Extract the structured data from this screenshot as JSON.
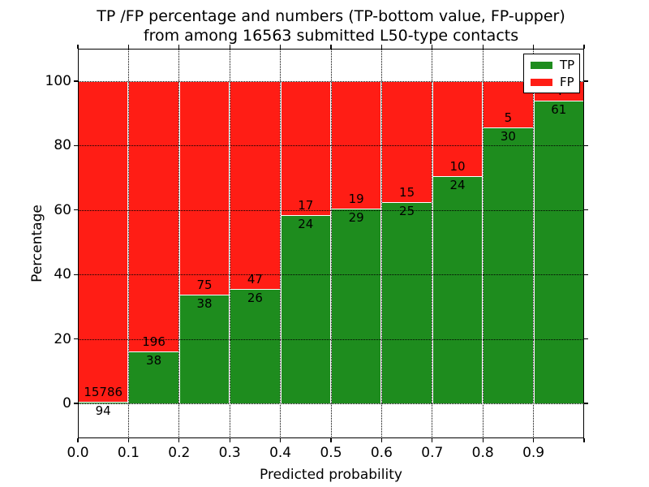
{
  "title": {
    "line1": "TP /FP percentage and numbers (TP-bottom value, FP-upper)",
    "line2": "from among 16563 submitted L50-type contacts"
  },
  "axes": {
    "x_label": "Predicted probability",
    "y_label": "Percentage",
    "x_ticks": [
      "0.0",
      "0.1",
      "0.2",
      "0.3",
      "0.4",
      "0.5",
      "0.6",
      "0.7",
      "0.8",
      "0.9"
    ],
    "y_ticks": [
      "0",
      "20",
      "40",
      "60",
      "80",
      "100"
    ],
    "y_tick_values": [
      0,
      20,
      40,
      60,
      80,
      100
    ]
  },
  "legend": {
    "items": [
      {
        "label": "TP",
        "color": "#1e8c1e"
      },
      {
        "label": "FP",
        "color": "#ff1d15"
      }
    ]
  },
  "colors": {
    "tp_green": "#1e8c1e",
    "fp_red": "#ff1d15",
    "axis_black": "#000000",
    "background": "#ffffff"
  },
  "chart_data": {
    "type": "bar",
    "stacked": true,
    "title": "TP /FP percentage and numbers (TP-bottom value, FP-upper) from among 16563 submitted L50-type contacts",
    "xlabel": "Predicted probability",
    "ylabel": "Percentage",
    "bin_edges": [
      0.0,
      0.1,
      0.2,
      0.3,
      0.4,
      0.5,
      0.6,
      0.7,
      0.8,
      0.9,
      1.0
    ],
    "categories": [
      "0.0-0.1",
      "0.1-0.2",
      "0.2-0.3",
      "0.3-0.4",
      "0.4-0.5",
      "0.5-0.6",
      "0.6-0.7",
      "0.7-0.8",
      "0.8-0.9",
      "0.9-1.0"
    ],
    "series": [
      {
        "name": "TP",
        "color": "#1e8c1e",
        "counts": [
          94,
          38,
          38,
          26,
          24,
          29,
          25,
          24,
          30,
          61
        ]
      },
      {
        "name": "FP",
        "color": "#ff1d15",
        "counts": [
          15786,
          196,
          75,
          47,
          17,
          19,
          15,
          10,
          5,
          4
        ]
      }
    ],
    "tp_percent": [
      0.59,
      16.24,
      33.63,
      35.62,
      58.54,
      60.42,
      62.5,
      70.59,
      85.71,
      93.85
    ],
    "total_contacts": 16563,
    "xlim": [
      0.0,
      1.0
    ],
    "ylim_visual": [
      -11,
      110
    ],
    "grid": "dotted both axes at major ticks",
    "legend_position": "upper right",
    "value_label_rule": "FP count printed just above TP/FP boundary, TP count just below"
  }
}
